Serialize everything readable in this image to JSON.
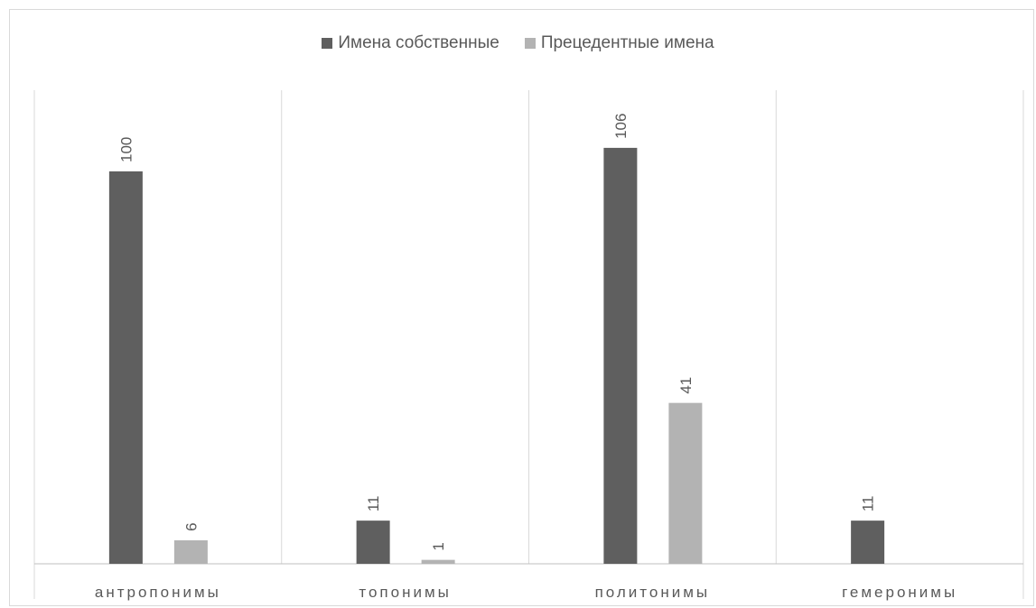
{
  "chart_data": {
    "type": "bar",
    "categories": [
      "антропонимы",
      "топонимы",
      "политонимы",
      "гемеронимы"
    ],
    "series": [
      {
        "name": "Имена собственные",
        "color": "#5f5f5f",
        "values": [
          100,
          11,
          106,
          11
        ]
      },
      {
        "name": "Прецедентные имена",
        "color": "#b3b3b3",
        "values": [
          6,
          1,
          41,
          null
        ]
      }
    ],
    "ylim": [
      0,
      120
    ],
    "grid": false,
    "category_separators": true,
    "legend_position": "top",
    "data_labels": "rotated-vertical"
  }
}
